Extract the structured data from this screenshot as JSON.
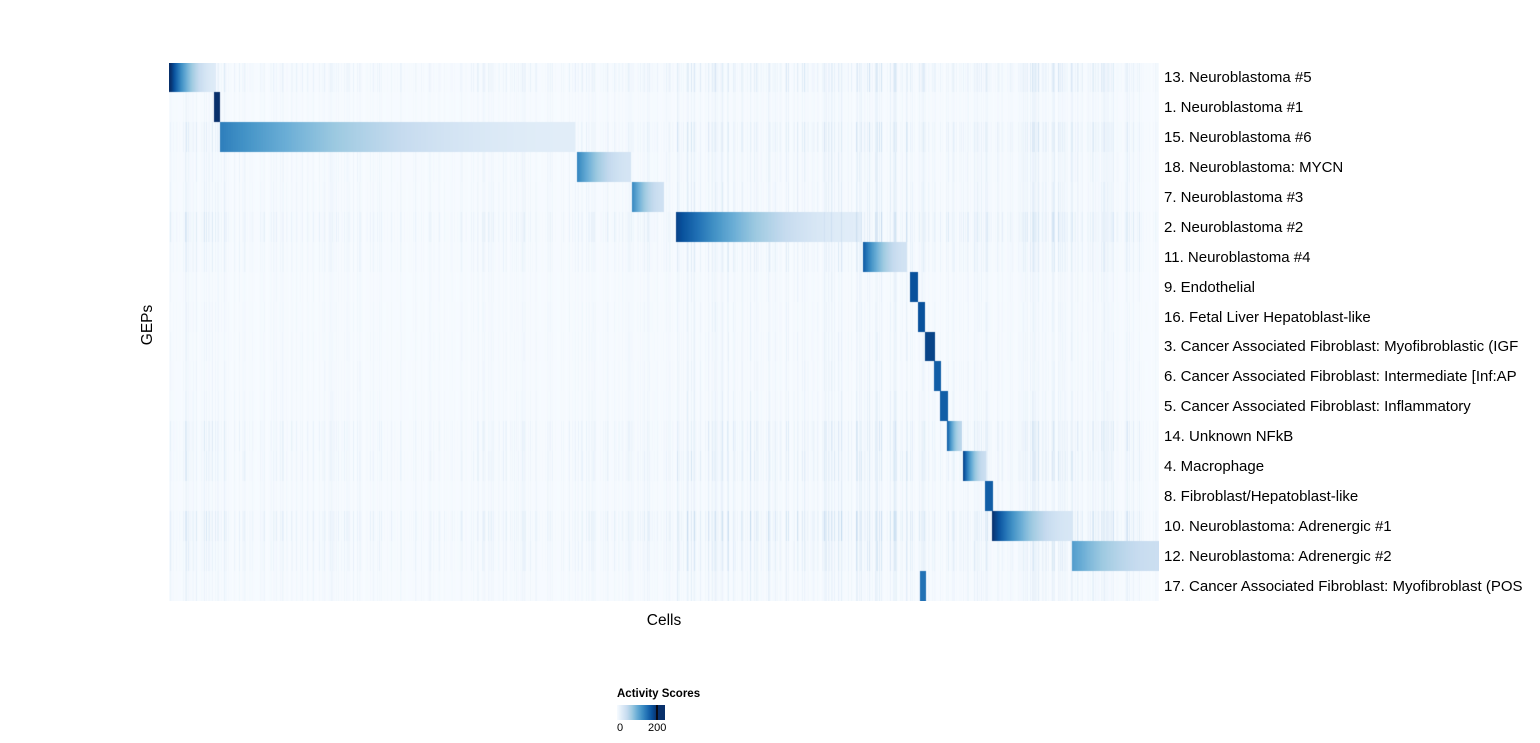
{
  "chart_data": {
    "type": "heatmap",
    "xlabel": "Cells",
    "ylabel": "GEPs",
    "value_domain": [
      0,
      200
    ],
    "legend": {
      "title": "Activity Scores",
      "ticks": [
        "0",
        "200"
      ],
      "max_fraction": 0.83
    },
    "colormap": [
      "#f7fbff",
      "#deebf7",
      "#c6dbef",
      "#9ecae1",
      "#6baed6",
      "#4292c6",
      "#2171b5",
      "#08519c",
      "#08306b"
    ],
    "rows": [
      {
        "label": "13. Neuroblastoma #5",
        "block": [
          0.0,
          0.047
        ],
        "peak": 210,
        "tail": 25,
        "noise": 0.45
      },
      {
        "label": "1. Neuroblastoma #1",
        "block": [
          0.045,
          0.051
        ],
        "peak": 200,
        "tail": 120,
        "noise": 0.2
      },
      {
        "label": "15. Neuroblastoma #6",
        "block": [
          0.051,
          0.41
        ],
        "peak": 140,
        "tail": 22,
        "noise": 0.45
      },
      {
        "label": "18. Neuroblastoma: MYCN",
        "block": [
          0.412,
          0.466
        ],
        "peak": 135,
        "tail": 35,
        "noise": 0.3
      },
      {
        "label": "7. Neuroblastoma #3",
        "block": [
          0.467,
          0.5
        ],
        "peak": 135,
        "tail": 40,
        "noise": 0.3
      },
      {
        "label": "2. Neuroblastoma #2",
        "block": [
          0.512,
          0.7
        ],
        "peak": 185,
        "tail": 22,
        "noise": 0.55
      },
      {
        "label": "11. Neuroblastoma #4",
        "block": [
          0.701,
          0.745
        ],
        "peak": 165,
        "tail": 38,
        "noise": 0.35
      },
      {
        "label": "9. Endothelial",
        "block": [
          0.748,
          0.756
        ],
        "peak": 175,
        "tail": 80,
        "noise": 0.2
      },
      {
        "label": "16. Fetal Liver Hepatoblast-like",
        "block": [
          0.756,
          0.763
        ],
        "peak": 175,
        "tail": 80,
        "noise": 0.22
      },
      {
        "label": "3. Cancer Associated Fibroblast: Myofibroblastic (IGF",
        "block": [
          0.763,
          0.773
        ],
        "peak": 185,
        "tail": 70,
        "noise": 0.22
      },
      {
        "label": "6. Cancer Associated Fibroblast: Intermediate [Inf:AP",
        "block": [
          0.772,
          0.779
        ],
        "peak": 165,
        "tail": 70,
        "noise": 0.22
      },
      {
        "label": "5. Cancer Associated Fibroblast: Inflammatory",
        "block": [
          0.778,
          0.786
        ],
        "peak": 165,
        "tail": 70,
        "noise": 0.24
      },
      {
        "label": "14. Unknown NFkB",
        "block": [
          0.785,
          0.801
        ],
        "peak": 175,
        "tail": 55,
        "noise": 0.45
      },
      {
        "label": "4. Macrophage",
        "block": [
          0.802,
          0.825
        ],
        "peak": 185,
        "tail": 45,
        "noise": 0.45
      },
      {
        "label": "8. Fibroblast/Hepatoblast-like",
        "block": [
          0.824,
          0.832
        ],
        "peak": 165,
        "tail": 70,
        "noise": 0.28
      },
      {
        "label": "10. Neuroblastoma: Adrenergic #1",
        "block": [
          0.831,
          0.912
        ],
        "peak": 200,
        "tail": 32,
        "noise": 0.6
      },
      {
        "label": "12. Neuroblastoma: Adrenergic #2",
        "block": [
          0.912,
          1.0
        ],
        "peak": 115,
        "tail": 45,
        "noise": 0.45
      },
      {
        "label": "17. Cancer Associated Fibroblast: Myofibroblast (POS",
        "block": [
          0.758,
          0.764
        ],
        "peak": 150,
        "tail": 60,
        "noise": 0.28
      }
    ],
    "noise_regions": [
      {
        "range": [
          0.0,
          0.06
        ],
        "boost": 1.6
      },
      {
        "range": [
          0.512,
          0.745
        ],
        "boost": 2.2
      },
      {
        "range": [
          0.745,
          0.835
        ],
        "boost": 1.6
      },
      {
        "range": [
          0.86,
          0.985
        ],
        "boost": 2.0
      }
    ]
  }
}
